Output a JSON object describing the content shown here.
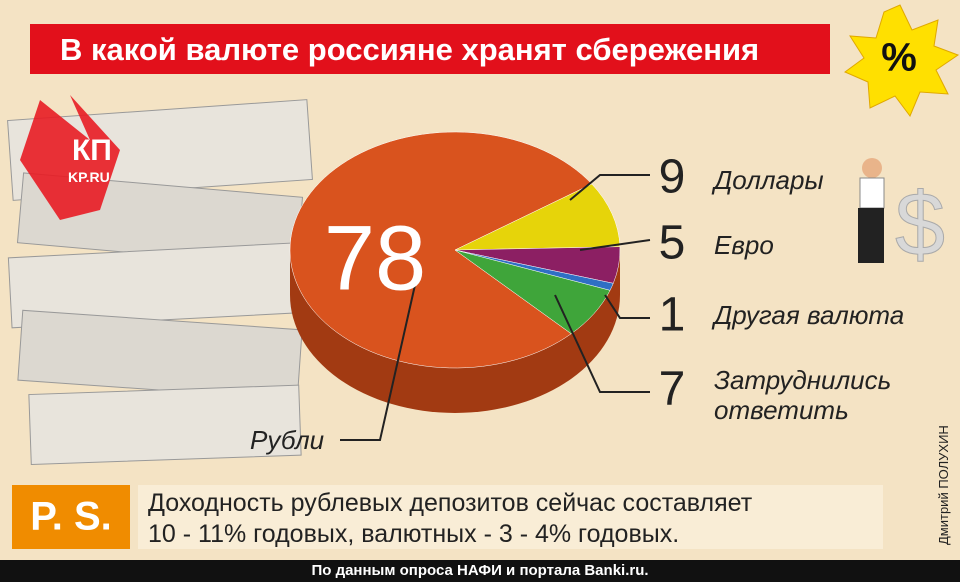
{
  "chart_data": {
    "type": "pie",
    "title": "В какой валюте россияне хранят сбережения",
    "badge": "%",
    "categories": [
      "Рубли",
      "Доллары",
      "Евро",
      "Другая валюта",
      "Затруднились ответить"
    ],
    "values": [
      78,
      9,
      5,
      1,
      7
    ],
    "colors": [
      "#d9531e",
      "#e6d40a",
      "#8c1f63",
      "#2f6fc4",
      "#3fa53a"
    ]
  },
  "logo": {
    "main": "КП",
    "sub": "KP.RU"
  },
  "postscript": {
    "label": "P. S.",
    "lines": [
      "Доходность рублевых депозитов сейчас составляет",
      "10 - 11% годовых, валютных - 3 - 4% годовых."
    ]
  },
  "credit": "Дмитрий ПОЛУХИН",
  "source": "По данным опроса НАФИ и портала Banki.ru."
}
